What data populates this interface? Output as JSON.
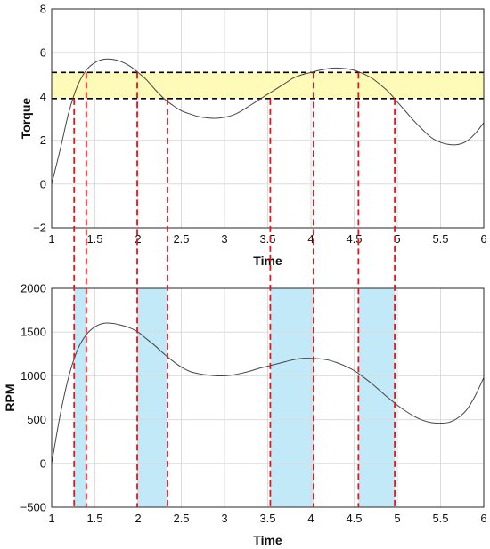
{
  "chart_data": [
    {
      "type": "line",
      "xlabel": "Time",
      "ylabel": "Torque",
      "xlim": [
        1,
        6
      ],
      "ylim": [
        -2,
        8
      ],
      "xticks": [
        1,
        1.5,
        2,
        2.5,
        3,
        3.5,
        4,
        4.5,
        5,
        5.5,
        6
      ],
      "xtick_labels": [
        "1",
        "1.5",
        "2",
        "2.5",
        "3",
        "3.5",
        "4",
        "4.5",
        "5",
        "5.5",
        "6"
      ],
      "yticks": [
        -2,
        0,
        2,
        4,
        6,
        8
      ],
      "ytick_labels": [
        "−2",
        "0",
        "2",
        "4",
        "6",
        "8"
      ],
      "grid": true,
      "band": {
        "y": [
          3.9,
          5.1
        ],
        "color": "#fefab8",
        "border_color": "#000000"
      },
      "series": [
        {
          "color": "#444444",
          "x": [
            1.0,
            1.1,
            1.2,
            1.3,
            1.4,
            1.5,
            1.6,
            1.7,
            1.8,
            1.9,
            2.0,
            2.1,
            2.2,
            2.3,
            2.4,
            2.5,
            2.6,
            2.7,
            2.8,
            2.9,
            3.0,
            3.1,
            3.2,
            3.3,
            3.4,
            3.5,
            3.6,
            3.7,
            3.8,
            3.9,
            4.0,
            4.1,
            4.2,
            4.3,
            4.4,
            4.5,
            4.6,
            4.7,
            4.8,
            4.9,
            5.0,
            5.1,
            5.2,
            5.3,
            5.4,
            5.5,
            5.6,
            5.7,
            5.8,
            5.9,
            6.0
          ],
          "y": [
            0.0,
            1.6,
            3.3,
            4.5,
            5.2,
            5.55,
            5.7,
            5.7,
            5.6,
            5.4,
            5.1,
            4.75,
            4.3,
            3.9,
            3.6,
            3.35,
            3.2,
            3.08,
            3.02,
            3.0,
            3.05,
            3.15,
            3.35,
            3.6,
            3.85,
            4.1,
            4.35,
            4.6,
            4.85,
            5.0,
            5.1,
            5.2,
            5.27,
            5.3,
            5.27,
            5.2,
            5.05,
            4.85,
            4.55,
            4.2,
            3.75,
            3.3,
            2.85,
            2.45,
            2.1,
            1.9,
            1.8,
            1.8,
            1.95,
            2.3,
            2.8
          ]
        }
      ]
    },
    {
      "type": "line",
      "xlabel": "Time",
      "ylabel": "RPM",
      "xlim": [
        1,
        6
      ],
      "ylim": [
        -500,
        2000
      ],
      "xticks": [
        1,
        1.5,
        2,
        2.5,
        3,
        3.5,
        4,
        4.5,
        5,
        5.5,
        6
      ],
      "xtick_labels": [
        "1",
        "1.5",
        "2",
        "2.5",
        "3",
        "3.5",
        "4",
        "4.5",
        "5",
        "5.5",
        "6"
      ],
      "yticks": [
        -500,
        0,
        500,
        1000,
        1500,
        2000
      ],
      "ytick_labels": [
        "−500",
        "0",
        "500",
        "1000",
        "1500",
        "2000"
      ],
      "grid": true,
      "shaded_regions": [
        {
          "x": [
            1.26,
            1.4
          ],
          "color": "#c2e9f7"
        },
        {
          "x": [
            1.99,
            2.34
          ],
          "color": "#c2e9f7"
        },
        {
          "x": [
            3.53,
            4.03
          ],
          "color": "#c2e9f7"
        },
        {
          "x": [
            4.55,
            4.97
          ],
          "color": "#c2e9f7"
        }
      ],
      "series": [
        {
          "color": "#444444",
          "x": [
            1.0,
            1.1,
            1.2,
            1.3,
            1.4,
            1.5,
            1.6,
            1.7,
            1.8,
            1.9,
            2.0,
            2.1,
            2.2,
            2.3,
            2.4,
            2.5,
            2.6,
            2.7,
            2.8,
            2.9,
            3.0,
            3.1,
            3.2,
            3.3,
            3.4,
            3.5,
            3.6,
            3.7,
            3.8,
            3.9,
            4.0,
            4.1,
            4.2,
            4.3,
            4.4,
            4.5,
            4.6,
            4.7,
            4.8,
            4.9,
            5.0,
            5.1,
            5.2,
            5.3,
            5.4,
            5.5,
            5.6,
            5.7,
            5.8,
            5.9,
            6.0
          ],
          "y": [
            0,
            560,
            1000,
            1300,
            1470,
            1560,
            1600,
            1600,
            1580,
            1550,
            1500,
            1420,
            1340,
            1250,
            1170,
            1100,
            1050,
            1025,
            1010,
            1000,
            1000,
            1010,
            1030,
            1055,
            1085,
            1110,
            1135,
            1160,
            1185,
            1200,
            1200,
            1195,
            1180,
            1150,
            1110,
            1060,
            990,
            915,
            830,
            745,
            665,
            595,
            535,
            490,
            465,
            460,
            470,
            520,
            610,
            770,
            980
          ]
        }
      ]
    }
  ],
  "guides": {
    "torque_band_color": "#fefab8",
    "red_line_color": "#e8141c",
    "red_line_times": [
      1.26,
      1.4,
      1.99,
      2.34,
      3.53,
      4.03,
      4.55,
      4.97
    ]
  }
}
